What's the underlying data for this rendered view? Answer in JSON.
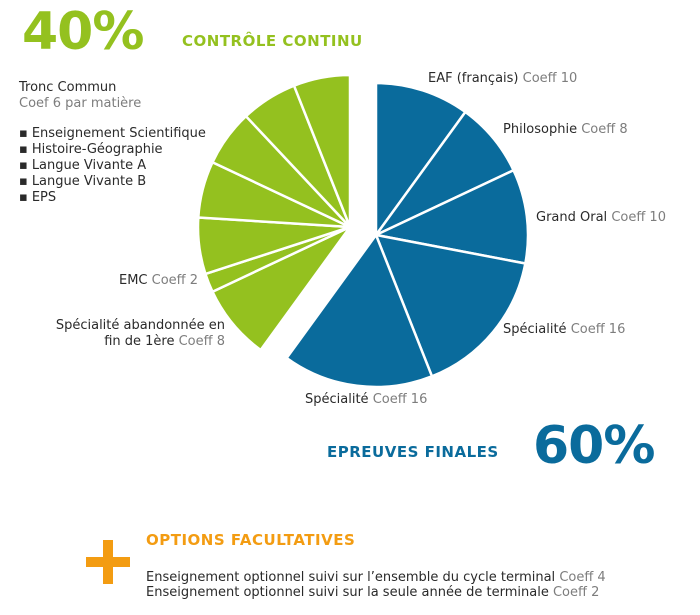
{
  "colors": {
    "green": "#94c11f",
    "blue": "#0a6b9c",
    "orange": "#f39c12",
    "gray": "#7d7d7d"
  },
  "header": {
    "pct": "40%",
    "title": "CONTRÔLE CONTINU"
  },
  "footer_pct": {
    "pct": "60%",
    "title": "EPREUVES FINALES"
  },
  "tronc": {
    "title": "Tronc Commun",
    "subtitle": "Coef 6 par matière",
    "items": [
      "Enseignement Scientifique",
      "Histoire-Géographie",
      "Langue Vivante A",
      "Langue Vivante B",
      "EPS"
    ]
  },
  "options": {
    "icon": "plus-icon",
    "title": "OPTIONS FACULTATIVES",
    "lines": [
      {
        "text": "Enseignement optionnel suivi sur l’ensemble du cycle terminal",
        "coeff": "Coeff 4"
      },
      {
        "text": "Enseignement optionnel suivi sur la seule année de terminale",
        "coeff": "Coeff 2"
      }
    ]
  },
  "chart_data": {
    "type": "pie",
    "total": 100,
    "slices": [
      {
        "group": "epreuves_finales",
        "name": "EAF (français)",
        "coeff_label": "Coeff 10",
        "value": 10
      },
      {
        "group": "epreuves_finales",
        "name": "Philosophie",
        "coeff_label": "Coeff 8",
        "value": 8
      },
      {
        "group": "epreuves_finales",
        "name": "Grand Oral",
        "coeff_label": "Coeff 10",
        "value": 10
      },
      {
        "group": "epreuves_finales",
        "name": "Spécialité",
        "coeff_label": "Coeff 16",
        "value": 16
      },
      {
        "group": "epreuves_finales",
        "name": "Spécialité",
        "coeff_label": "Coeff 16",
        "value": 16
      },
      {
        "group": "controle_continu",
        "name": "Spécialité abandonnée en fin de 1ère",
        "coeff_label": "Coeff 8",
        "value": 8
      },
      {
        "group": "controle_continu",
        "name": "EMC",
        "coeff_label": "Coeff 2",
        "value": 2
      },
      {
        "group": "controle_continu",
        "name": "",
        "coeff_label": "",
        "value": 6
      },
      {
        "group": "controle_continu",
        "name": "",
        "coeff_label": "",
        "value": 6
      },
      {
        "group": "controle_continu",
        "name": "",
        "coeff_label": "",
        "value": 6
      },
      {
        "group": "controle_continu",
        "name": "",
        "coeff_label": "",
        "value": 6
      },
      {
        "group": "controle_continu",
        "name": "",
        "coeff_label": "",
        "value": 6
      }
    ],
    "legend": [
      {
        "label": "CONTRÔLE CONTINU",
        "value": "40%"
      },
      {
        "label": "EPREUVES FINALES",
        "value": "60%"
      }
    ]
  }
}
